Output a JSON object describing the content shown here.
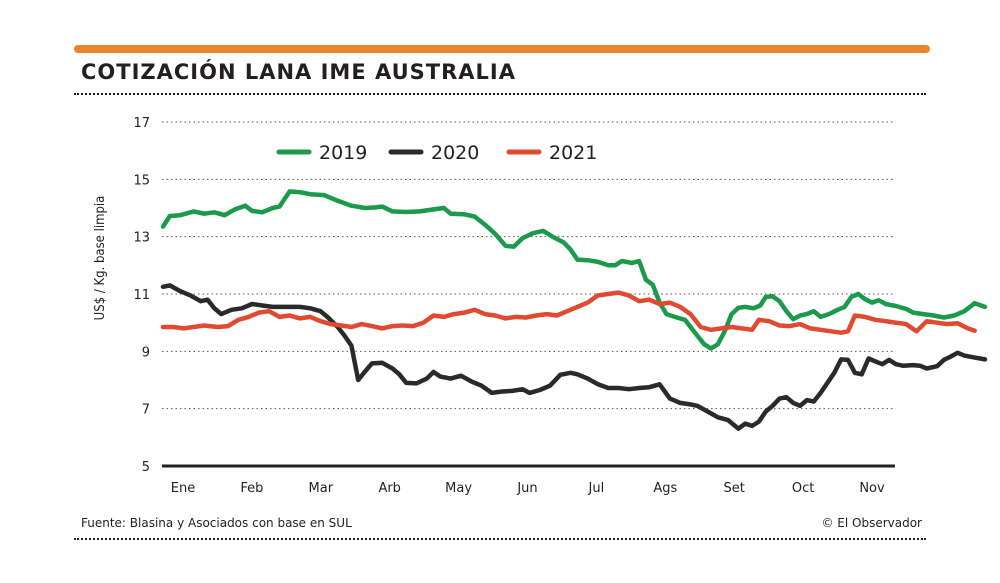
{
  "header": {
    "title": "COTIZACIÓN LANA IME AUSTRALIA",
    "accent_color": "#e8862e"
  },
  "footer": {
    "source": "Fuente: Blasina y Asociados con base en SUL",
    "credit": "© El Observador"
  },
  "chart_data": {
    "type": "line",
    "title": "COTIZACIÓN LANA IME AUSTRALIA",
    "ylabel": "US$ / Kg. base limpia",
    "xlabel": "",
    "ylim": [
      5,
      17
    ],
    "yticks": [
      5,
      7,
      9,
      11,
      13,
      15,
      17
    ],
    "xticks": [
      "Ene",
      "Feb",
      "Mar",
      "Arb",
      "May",
      "Jun",
      "Jul",
      "Ags",
      "Set",
      "Oct",
      "Nov"
    ],
    "grid": "horizontal dotted",
    "legend_position": "top-center",
    "x_unit": "months",
    "series": [
      {
        "name": "2019",
        "color": "#1a9a4a",
        "points": [
          [
            0.0,
            13.35
          ],
          [
            0.1,
            13.72
          ],
          [
            0.25,
            13.75
          ],
          [
            0.45,
            13.88
          ],
          [
            0.6,
            13.8
          ],
          [
            0.75,
            13.85
          ],
          [
            0.9,
            13.75
          ],
          [
            1.05,
            13.95
          ],
          [
            1.2,
            14.08
          ],
          [
            1.3,
            13.9
          ],
          [
            1.45,
            13.85
          ],
          [
            1.6,
            14.0
          ],
          [
            1.7,
            14.05
          ],
          [
            1.85,
            14.58
          ],
          [
            2.0,
            14.55
          ],
          [
            2.15,
            14.48
          ],
          [
            2.35,
            14.45
          ],
          [
            2.55,
            14.25
          ],
          [
            2.75,
            14.08
          ],
          [
            2.95,
            14.0
          ],
          [
            3.1,
            14.02
          ],
          [
            3.2,
            14.05
          ],
          [
            3.35,
            13.88
          ],
          [
            3.55,
            13.86
          ],
          [
            3.75,
            13.88
          ],
          [
            3.95,
            13.95
          ],
          [
            4.1,
            14.0
          ],
          [
            4.2,
            13.8
          ],
          [
            4.4,
            13.78
          ],
          [
            4.55,
            13.7
          ],
          [
            4.7,
            13.42
          ],
          [
            4.85,
            13.1
          ],
          [
            5.0,
            12.68
          ],
          [
            5.12,
            12.65
          ],
          [
            5.25,
            12.95
          ],
          [
            5.4,
            13.12
          ],
          [
            5.55,
            13.2
          ],
          [
            5.7,
            12.98
          ],
          [
            5.85,
            12.8
          ],
          [
            5.95,
            12.55
          ],
          [
            6.05,
            12.2
          ],
          [
            6.2,
            12.18
          ],
          [
            6.35,
            12.12
          ],
          [
            6.5,
            12.0
          ],
          [
            6.6,
            12.0
          ],
          [
            6.7,
            12.15
          ],
          [
            6.85,
            12.08
          ],
          [
            6.95,
            12.15
          ],
          [
            7.05,
            11.5
          ],
          [
            7.15,
            11.32
          ],
          [
            7.25,
            10.7
          ],
          [
            7.35,
            10.3
          ],
          [
            7.5,
            10.18
          ],
          [
            7.62,
            10.1
          ],
          [
            7.7,
            9.85
          ],
          [
            7.8,
            9.55
          ],
          [
            7.9,
            9.25
          ],
          [
            8.0,
            9.1
          ],
          [
            8.1,
            9.25
          ],
          [
            8.2,
            9.7
          ],
          [
            8.3,
            10.3
          ],
          [
            8.4,
            10.52
          ],
          [
            8.5,
            10.55
          ],
          [
            8.62,
            10.5
          ],
          [
            8.72,
            10.6
          ],
          [
            8.8,
            10.9
          ],
          [
            8.9,
            10.92
          ],
          [
            9.0,
            10.75
          ],
          [
            9.1,
            10.4
          ],
          [
            9.2,
            10.12
          ],
          [
            9.3,
            10.25
          ],
          [
            9.4,
            10.3
          ],
          [
            9.5,
            10.4
          ],
          [
            9.6,
            10.2
          ],
          [
            9.72,
            10.3
          ],
          [
            9.85,
            10.45
          ],
          [
            9.95,
            10.55
          ],
          [
            10.05,
            10.9
          ],
          [
            10.15,
            11.0
          ],
          [
            10.25,
            10.82
          ],
          [
            10.35,
            10.7
          ],
          [
            10.45,
            10.78
          ],
          [
            10.55,
            10.65
          ],
          [
            10.7,
            10.58
          ],
          [
            10.85,
            10.48
          ],
          [
            10.95,
            10.35
          ],
          [
            11.1,
            10.3
          ],
          [
            11.25,
            10.25
          ],
          [
            11.4,
            10.18
          ],
          [
            11.55,
            10.25
          ],
          [
            11.7,
            10.4
          ],
          [
            11.85,
            10.68
          ],
          [
            12.0,
            10.55
          ]
        ]
      },
      {
        "name": "2020",
        "color": "#2a2a2a",
        "points": [
          [
            0.0,
            11.25
          ],
          [
            0.1,
            11.3
          ],
          [
            0.25,
            11.1
          ],
          [
            0.4,
            10.95
          ],
          [
            0.55,
            10.75
          ],
          [
            0.65,
            10.8
          ],
          [
            0.75,
            10.5
          ],
          [
            0.85,
            10.3
          ],
          [
            1.0,
            10.45
          ],
          [
            1.15,
            10.5
          ],
          [
            1.3,
            10.65
          ],
          [
            1.45,
            10.6
          ],
          [
            1.6,
            10.55
          ],
          [
            1.8,
            10.55
          ],
          [
            2.0,
            10.55
          ],
          [
            2.15,
            10.5
          ],
          [
            2.3,
            10.4
          ],
          [
            2.4,
            10.2
          ],
          [
            2.55,
            9.85
          ],
          [
            2.65,
            9.55
          ],
          [
            2.75,
            9.2
          ],
          [
            2.85,
            8.0
          ],
          [
            2.95,
            8.3
          ],
          [
            3.05,
            8.58
          ],
          [
            3.2,
            8.6
          ],
          [
            3.35,
            8.4
          ],
          [
            3.45,
            8.2
          ],
          [
            3.55,
            7.9
          ],
          [
            3.7,
            7.88
          ],
          [
            3.85,
            8.05
          ],
          [
            3.95,
            8.28
          ],
          [
            4.05,
            8.12
          ],
          [
            4.2,
            8.05
          ],
          [
            4.35,
            8.15
          ],
          [
            4.5,
            7.95
          ],
          [
            4.65,
            7.8
          ],
          [
            4.8,
            7.55
          ],
          [
            4.95,
            7.6
          ],
          [
            5.1,
            7.62
          ],
          [
            5.25,
            7.68
          ],
          [
            5.35,
            7.55
          ],
          [
            5.5,
            7.65
          ],
          [
            5.65,
            7.8
          ],
          [
            5.8,
            8.18
          ],
          [
            5.95,
            8.25
          ],
          [
            6.05,
            8.2
          ],
          [
            6.2,
            8.05
          ],
          [
            6.35,
            7.85
          ],
          [
            6.5,
            7.72
          ],
          [
            6.65,
            7.72
          ],
          [
            6.8,
            7.68
          ],
          [
            6.95,
            7.72
          ],
          [
            7.1,
            7.75
          ],
          [
            7.25,
            7.85
          ],
          [
            7.4,
            7.35
          ],
          [
            7.55,
            7.2
          ],
          [
            7.7,
            7.15
          ],
          [
            7.8,
            7.1
          ],
          [
            7.95,
            6.9
          ],
          [
            8.1,
            6.7
          ],
          [
            8.25,
            6.6
          ],
          [
            8.4,
            6.3
          ],
          [
            8.5,
            6.48
          ],
          [
            8.6,
            6.4
          ],
          [
            8.7,
            6.55
          ],
          [
            8.8,
            6.9
          ],
          [
            8.9,
            7.1
          ],
          [
            9.0,
            7.35
          ],
          [
            9.1,
            7.4
          ],
          [
            9.2,
            7.2
          ],
          [
            9.3,
            7.1
          ],
          [
            9.4,
            7.3
          ],
          [
            9.5,
            7.25
          ],
          [
            9.6,
            7.55
          ],
          [
            9.7,
            7.9
          ],
          [
            9.8,
            8.25
          ],
          [
            9.9,
            8.72
          ],
          [
            10.0,
            8.7
          ],
          [
            10.1,
            8.25
          ],
          [
            10.2,
            8.2
          ],
          [
            10.3,
            8.75
          ],
          [
            10.4,
            8.65
          ],
          [
            10.5,
            8.55
          ],
          [
            10.6,
            8.7
          ],
          [
            10.7,
            8.55
          ],
          [
            10.8,
            8.5
          ],
          [
            10.95,
            8.52
          ],
          [
            11.05,
            8.5
          ],
          [
            11.15,
            8.4
          ],
          [
            11.3,
            8.48
          ],
          [
            11.4,
            8.7
          ],
          [
            11.5,
            8.82
          ],
          [
            11.6,
            8.95
          ],
          [
            11.7,
            8.85
          ],
          [
            11.85,
            8.78
          ],
          [
            12.0,
            8.72
          ]
        ]
      },
      {
        "name": "2021",
        "color": "#e04a30",
        "points": [
          [
            0.0,
            9.85
          ],
          [
            0.15,
            9.85
          ],
          [
            0.3,
            9.8
          ],
          [
            0.45,
            9.85
          ],
          [
            0.6,
            9.9
          ],
          [
            0.8,
            9.85
          ],
          [
            0.95,
            9.88
          ],
          [
            1.1,
            10.1
          ],
          [
            1.25,
            10.2
          ],
          [
            1.4,
            10.35
          ],
          [
            1.55,
            10.4
          ],
          [
            1.7,
            10.2
          ],
          [
            1.85,
            10.25
          ],
          [
            2.0,
            10.15
          ],
          [
            2.15,
            10.2
          ],
          [
            2.3,
            10.05
          ],
          [
            2.45,
            9.95
          ],
          [
            2.6,
            9.9
          ],
          [
            2.75,
            9.85
          ],
          [
            2.9,
            9.95
          ],
          [
            3.05,
            9.88
          ],
          [
            3.2,
            9.8
          ],
          [
            3.35,
            9.88
          ],
          [
            3.5,
            9.9
          ],
          [
            3.65,
            9.88
          ],
          [
            3.8,
            10.0
          ],
          [
            3.95,
            10.25
          ],
          [
            4.1,
            10.2
          ],
          [
            4.25,
            10.3
          ],
          [
            4.4,
            10.35
          ],
          [
            4.55,
            10.45
          ],
          [
            4.7,
            10.3
          ],
          [
            4.85,
            10.25
          ],
          [
            5.0,
            10.15
          ],
          [
            5.15,
            10.2
          ],
          [
            5.3,
            10.18
          ],
          [
            5.45,
            10.25
          ],
          [
            5.6,
            10.3
          ],
          [
            5.75,
            10.25
          ],
          [
            5.9,
            10.4
          ],
          [
            6.05,
            10.55
          ],
          [
            6.2,
            10.7
          ],
          [
            6.35,
            10.95
          ],
          [
            6.5,
            11.0
          ],
          [
            6.65,
            11.05
          ],
          [
            6.8,
            10.95
          ],
          [
            6.95,
            10.75
          ],
          [
            7.1,
            10.8
          ],
          [
            7.25,
            10.65
          ],
          [
            7.4,
            10.7
          ],
          [
            7.55,
            10.55
          ],
          [
            7.7,
            10.3
          ],
          [
            7.85,
            9.85
          ],
          [
            8.0,
            9.75
          ],
          [
            8.15,
            9.8
          ],
          [
            8.3,
            9.85
          ],
          [
            8.45,
            9.8
          ],
          [
            8.6,
            9.75
          ],
          [
            8.7,
            10.1
          ],
          [
            8.85,
            10.05
          ],
          [
            9.0,
            9.9
          ],
          [
            9.15,
            9.88
          ],
          [
            9.3,
            9.95
          ],
          [
            9.45,
            9.8
          ],
          [
            9.6,
            9.75
          ],
          [
            9.75,
            9.7
          ],
          [
            9.9,
            9.65
          ],
          [
            10.0,
            9.7
          ],
          [
            10.1,
            10.25
          ],
          [
            10.25,
            10.2
          ],
          [
            10.4,
            10.1
          ],
          [
            10.55,
            10.05
          ],
          [
            10.7,
            10.0
          ],
          [
            10.85,
            9.95
          ],
          [
            11.0,
            9.7
          ],
          [
            11.15,
            10.05
          ],
          [
            11.3,
            10.0
          ],
          [
            11.45,
            9.95
          ],
          [
            11.6,
            9.98
          ],
          [
            11.75,
            9.8
          ],
          [
            11.85,
            9.72
          ]
        ]
      }
    ]
  }
}
